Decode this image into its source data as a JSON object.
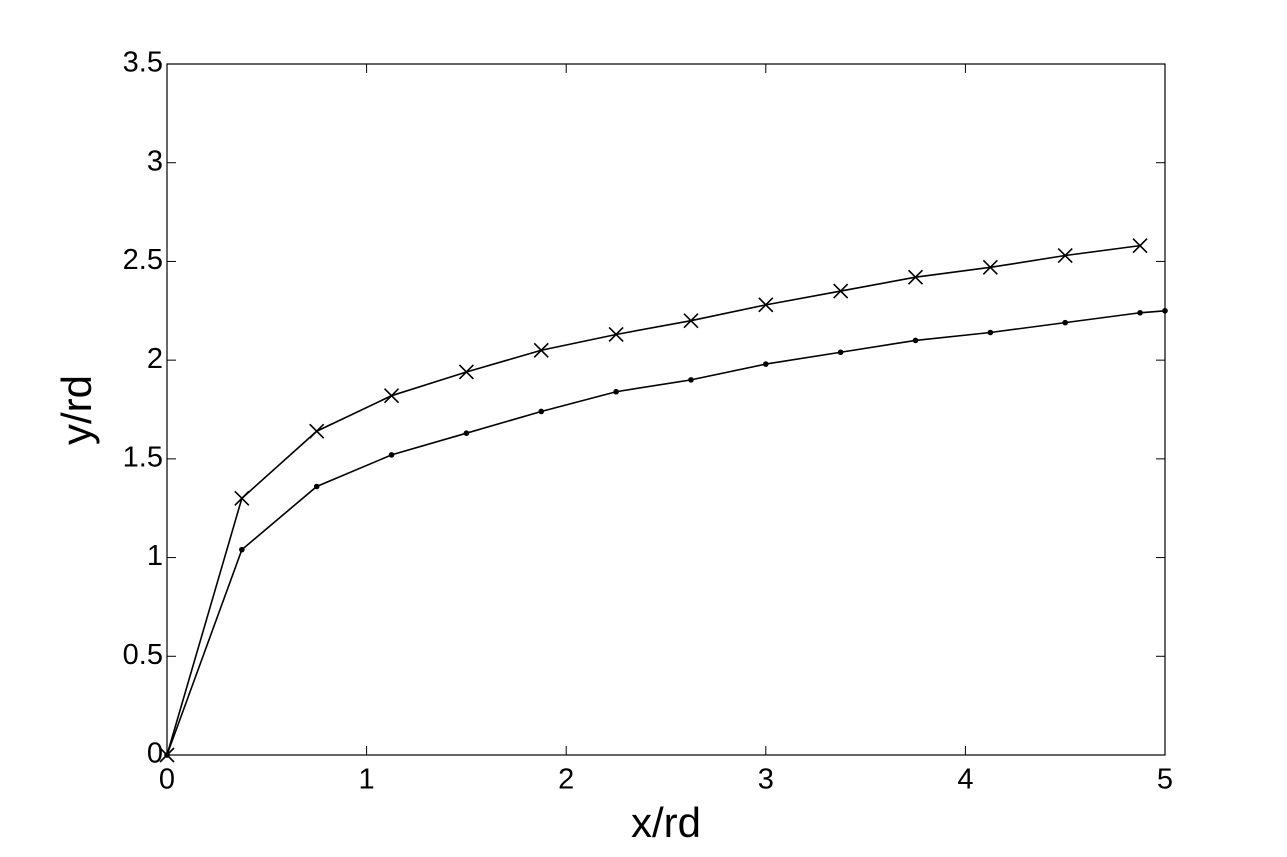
{
  "chart_data": {
    "type": "line",
    "xlabel": "x/rd",
    "ylabel": "y/rd",
    "xlim": [
      0,
      5
    ],
    "ylim": [
      0,
      3.5
    ],
    "xticks": [
      0,
      1,
      2,
      3,
      4,
      5
    ],
    "yticks": [
      0,
      0.5,
      1,
      1.5,
      2,
      2.5,
      3,
      3.5
    ],
    "grid": false,
    "series": [
      {
        "color": "#000000",
        "marker": "x",
        "x": [
          0,
          0.375,
          0.75,
          1.125,
          1.5,
          1.875,
          2.25,
          2.625,
          3.0,
          3.375,
          3.75,
          4.125,
          4.5,
          4.875
        ],
        "values": [
          0,
          1.3,
          1.64,
          1.82,
          1.94,
          2.05,
          2.13,
          2.2,
          2.28,
          2.35,
          2.42,
          2.47,
          2.53,
          2.58
        ]
      },
      {
        "color": "#000000",
        "marker": "dot",
        "x": [
          0,
          0.375,
          0.75,
          1.125,
          1.5,
          1.875,
          2.25,
          2.625,
          3.0,
          3.375,
          3.75,
          4.125,
          4.5,
          4.875,
          5
        ],
        "values": [
          0,
          1.04,
          1.36,
          1.52,
          1.63,
          1.74,
          1.84,
          1.9,
          1.98,
          2.04,
          2.1,
          2.14,
          2.19,
          2.24,
          2.25
        ]
      }
    ]
  }
}
